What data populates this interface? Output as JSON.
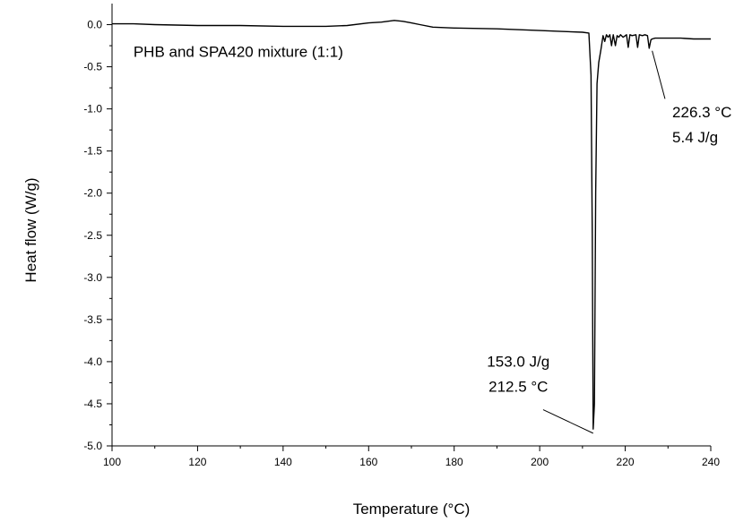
{
  "chart_data": {
    "type": "line",
    "xlabel": "Temperature (°C)",
    "ylabel": "Heat flow (W/g)",
    "xlim": [
      100,
      240
    ],
    "ylim": [
      -5.0,
      0.25
    ],
    "xticks": [
      100,
      120,
      140,
      160,
      180,
      200,
      220,
      240
    ],
    "yticks": [
      0.0,
      -0.5,
      -1.0,
      -1.5,
      -2.0,
      -2.5,
      -3.0,
      -3.5,
      -4.0,
      -4.5,
      -5.0
    ],
    "ytick_labels": [
      "0.0",
      "-0.5",
      "-1.0",
      "-1.5",
      "-2.0",
      "-2.5",
      "-3.0",
      "-3.5",
      "-4.0",
      "-4.5",
      "-5.0"
    ],
    "grid": false,
    "legend": "none",
    "series": [
      {
        "x": [
          100,
          105,
          110,
          120,
          130,
          140,
          150,
          155,
          160,
          163,
          166,
          168,
          170,
          172,
          175,
          180,
          190,
          200,
          205,
          210,
          211.5,
          212.0,
          212.3,
          212.5,
          212.8,
          213.1,
          213.4,
          213.8,
          214.3,
          214.8,
          215.2,
          215.6,
          216.0,
          216.4,
          216.8,
          217.2,
          217.7,
          218.1,
          218.5,
          218.9,
          219.5,
          220.3,
          220.7,
          221.1,
          221.6,
          222.5,
          222.9,
          223.3,
          224.0,
          224.6,
          225.2,
          225.6,
          226.0,
          226.3,
          227.0,
          228.0,
          230.0,
          233.0,
          236.0,
          238.0,
          240.0
        ],
        "y": [
          0.01,
          0.01,
          0.0,
          -0.01,
          -0.01,
          -0.02,
          -0.02,
          -0.01,
          0.02,
          0.03,
          0.05,
          0.04,
          0.02,
          0.0,
          -0.03,
          -0.04,
          -0.05,
          -0.07,
          -0.08,
          -0.09,
          -0.1,
          -0.6,
          -2.5,
          -4.8,
          -4.5,
          -2.0,
          -0.7,
          -0.45,
          -0.3,
          -0.13,
          -0.2,
          -0.12,
          -0.15,
          -0.12,
          -0.25,
          -0.12,
          -0.25,
          -0.13,
          -0.15,
          -0.12,
          -0.15,
          -0.12,
          -0.27,
          -0.12,
          -0.13,
          -0.12,
          -0.27,
          -0.12,
          -0.13,
          -0.12,
          -0.13,
          -0.28,
          -0.18,
          -0.17,
          -0.16,
          -0.16,
          -0.16,
          -0.16,
          -0.17,
          -0.17,
          -0.17
        ]
      }
    ],
    "annotations": [
      {
        "lines": [
          "PHB and SPA420 mixture (1:1)"
        ],
        "x": 105,
        "y": -0.38,
        "anchor": "start"
      },
      {
        "lines": [
          "226.3 °C",
          "5.4 J/g"
        ],
        "x": 231,
        "y": -1.1,
        "anchor": "start",
        "line_to": [
          226.3,
          -0.31
        ],
        "line_from": [
          229.3,
          -0.88
        ]
      },
      {
        "lines": [
          "153.0 J/g",
          "212.5 °C"
        ],
        "x": 195,
        "y": -4.06,
        "anchor": "middle",
        "line_to": [
          212.5,
          -4.85
        ],
        "line_from": [
          200.8,
          -4.57
        ]
      }
    ]
  }
}
